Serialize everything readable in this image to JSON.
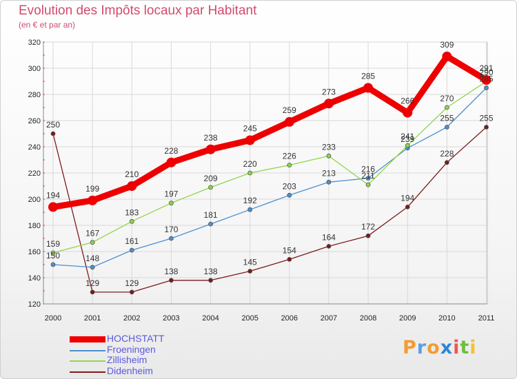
{
  "header": {
    "title": "Evolution des Impôts locaux par Habitant",
    "subtitle": "(en € et par an)"
  },
  "brand": {
    "letters": [
      "P",
      "r",
      "o",
      "x",
      "i",
      "t",
      "i"
    ],
    "colors": [
      "#f39c34",
      "#5aa0e6",
      "#f39c34",
      "#2f86d6",
      "#e75a4f",
      "#6cbf3a",
      "#f2c233"
    ]
  },
  "chart_data": {
    "type": "line",
    "title": "Evolution des Impôts locaux par Habitant",
    "subtitle": "(en € et par an)",
    "x": [
      "2000",
      "2001",
      "2002",
      "2003",
      "2004",
      "2005",
      "2006",
      "2007",
      "2008",
      "2009",
      "2010",
      "2011"
    ],
    "ylim": [
      120,
      320
    ],
    "yticks": [
      120,
      140,
      160,
      180,
      200,
      220,
      240,
      260,
      280,
      300,
      320
    ],
    "grid": true,
    "legend_position": "bottom-left",
    "series": [
      {
        "name": "HOCHSTATT",
        "color": "#ee0000",
        "values": [
          194,
          199,
          210,
          228,
          238,
          245,
          259,
          273,
          285,
          266,
          309,
          291
        ]
      },
      {
        "name": "Froeningen",
        "color": "#4b8fd0",
        "values": [
          150,
          148,
          161,
          170,
          181,
          192,
          203,
          213,
          216,
          239,
          255,
          285
        ]
      },
      {
        "name": "Zillisheim",
        "color": "#8dd64a",
        "values": [
          159,
          167,
          183,
          197,
          209,
          220,
          226,
          233,
          211,
          241,
          270,
          290
        ]
      },
      {
        "name": "Didenheim",
        "color": "#7a1a1a",
        "values": [
          250,
          129,
          129,
          138,
          138,
          145,
          154,
          164,
          172,
          194,
          228,
          255
        ]
      }
    ]
  }
}
